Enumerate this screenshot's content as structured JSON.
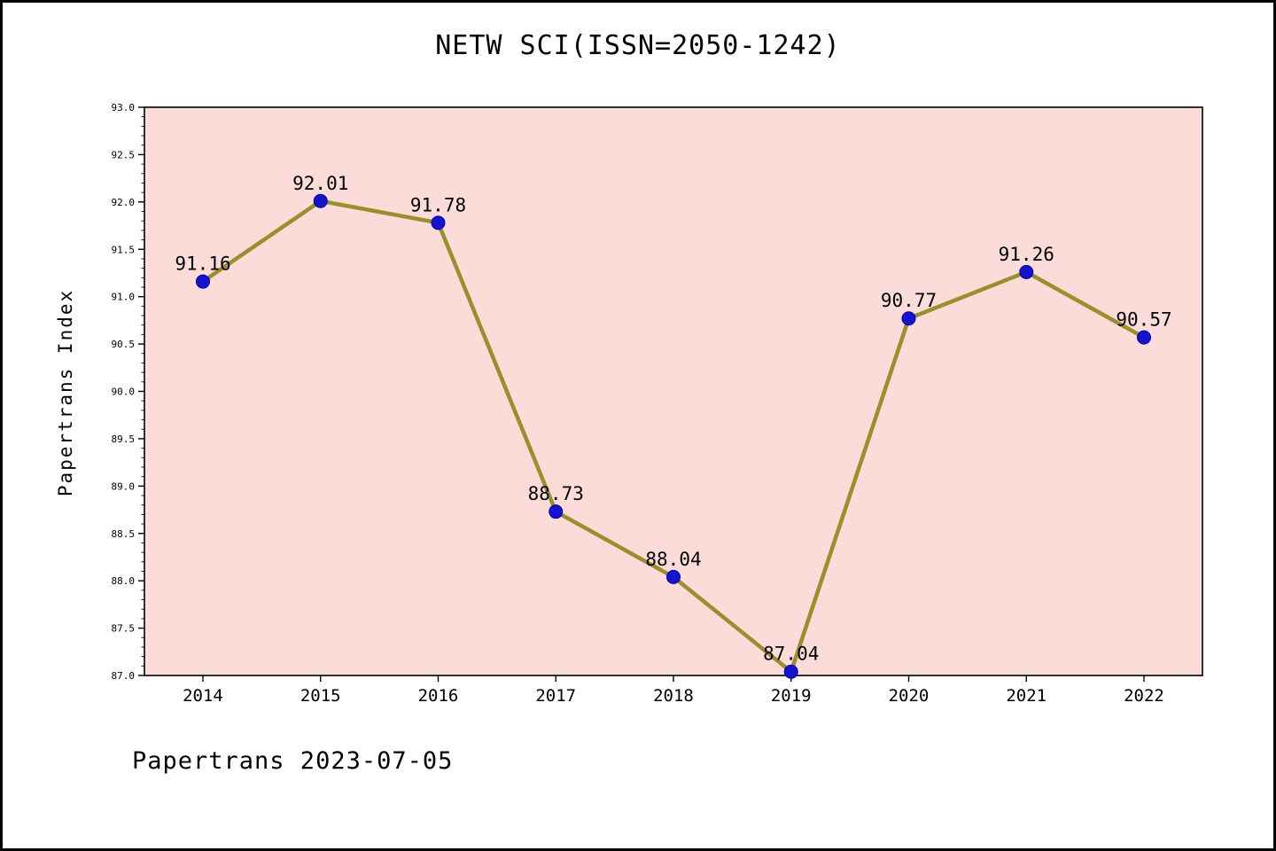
{
  "chart_data": {
    "type": "line",
    "title": "NETW SCI(ISSN=2050-1242)",
    "xlabel": "",
    "ylabel": "Papertrans Index",
    "categories": [
      "2014",
      "2015",
      "2016",
      "2017",
      "2018",
      "2019",
      "2020",
      "2021",
      "2022"
    ],
    "values": [
      91.16,
      92.01,
      91.78,
      88.73,
      88.04,
      87.04,
      90.77,
      91.26,
      90.57
    ],
    "ylim": [
      87.0,
      93.0
    ],
    "ytick_step": 0.5,
    "ytick_minor_step": 0.1,
    "grid": false,
    "legend": "none",
    "line_color": "#9a8f2c",
    "marker_color": "#1414cc",
    "marker_edge_color": "#0000a6",
    "plot_bg": "#fbdcd9",
    "page_bg": "#ffffff",
    "border_color": "#000000"
  },
  "footer": {
    "text": "Papertrans 2023-07-05"
  }
}
